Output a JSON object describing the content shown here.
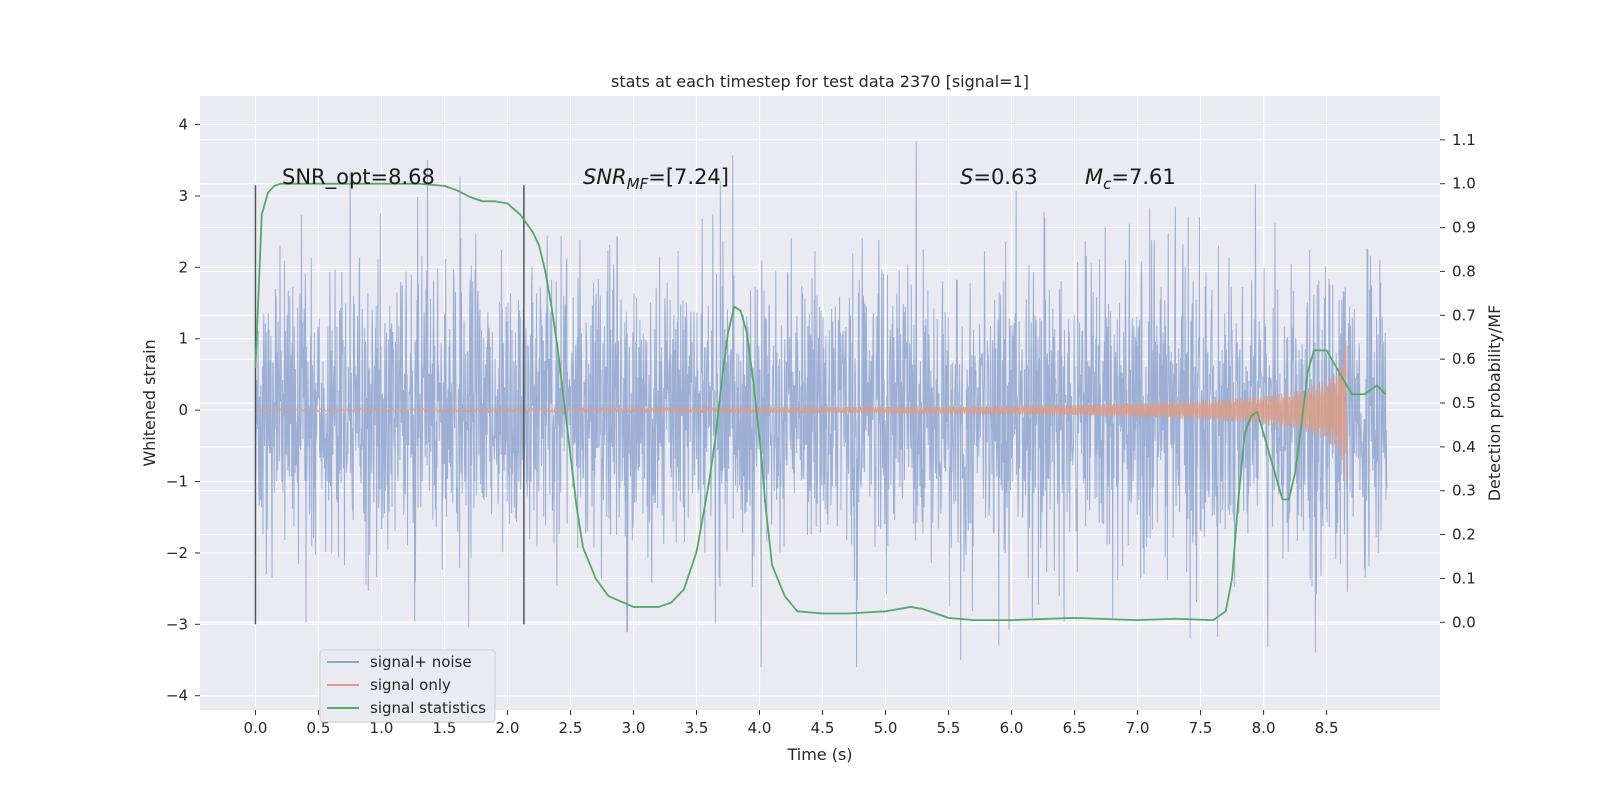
{
  "chart_data": {
    "type": "line",
    "title": "stats at each timestep for test data 2370 [signal=1]",
    "xlabel": "Time (s)",
    "ylabel_left": "Whitened strain",
    "ylabel_right": "Detection probability/MF",
    "xlim": [
      -0.44,
      9.4
    ],
    "ylim_left": [
      -4.2,
      4.4
    ],
    "ylim_right": [
      -0.2,
      1.2
    ],
    "x_ticks": [
      "0.0",
      "0.5",
      "1.0",
      "1.5",
      "2.0",
      "2.5",
      "3.0",
      "3.5",
      "4.0",
      "4.5",
      "5.0",
      "5.5",
      "6.0",
      "6.5",
      "7.0",
      "7.5",
      "8.0",
      "8.5"
    ],
    "y_ticks_left": [
      "4",
      "3",
      "2",
      "1",
      "0",
      "−1",
      "−2",
      "−3",
      "−4"
    ],
    "y_ticks_right": [
      "1.1",
      "1.0",
      "0.9",
      "0.8",
      "0.7",
      "0.6",
      "0.5",
      "0.4",
      "0.3",
      "0.2",
      "0.1",
      "0.0"
    ],
    "grid": true,
    "legend_position": "lower-left",
    "annotations": {
      "snr_opt": "SNR_opt=8.68",
      "snr_mf_main": "SNR",
      "snr_mf_sub": "MF",
      "snr_mf_value": "=[7.24]",
      "s_main": "S",
      "s_value": "=0.63",
      "mc_main": "M",
      "mc_sub": "c",
      "mc_value": "=7.61"
    },
    "markers": {
      "vertical_lines_x": [
        0.0,
        2.13
      ],
      "vertical_lines_yrange": [
        -3.0,
        3.15
      ]
    },
    "series": [
      {
        "name": "signal+ noise",
        "color": "#8fa4cf",
        "x_range": [
          0.0,
          8.98
        ],
        "approx_envelope": [
          -3.6,
          4.0
        ],
        "note_shape": "dense noise"
      },
      {
        "name": "signal only",
        "color": "#dd9c86",
        "x": [
          0.0,
          1.0,
          2.0,
          3.0,
          4.0,
          5.0,
          6.0,
          7.0,
          7.5,
          8.0,
          8.3,
          8.5,
          8.6,
          8.66,
          8.67
        ],
        "amplitude": [
          0.015,
          0.018,
          0.022,
          0.027,
          0.035,
          0.045,
          0.06,
          0.1,
          0.13,
          0.2,
          0.28,
          0.42,
          0.6,
          1.1,
          0.0
        ]
      },
      {
        "name": "signal statistics",
        "color": "#55a868",
        "x": [
          0.0,
          0.05,
          0.1,
          0.15,
          0.2,
          0.3,
          0.4,
          0.5,
          0.7,
          1.0,
          1.3,
          1.5,
          1.6,
          1.7,
          1.8,
          1.9,
          2.0,
          2.1,
          2.2,
          2.25,
          2.3,
          2.35,
          2.4,
          2.45,
          2.5,
          2.55,
          2.6,
          2.7,
          2.8,
          3.0,
          3.2,
          3.3,
          3.4,
          3.5,
          3.6,
          3.65,
          3.7,
          3.75,
          3.8,
          3.85,
          3.9,
          3.95,
          4.0,
          4.05,
          4.1,
          4.2,
          4.3,
          4.5,
          4.7,
          5.0,
          5.2,
          5.3,
          5.5,
          5.7,
          6.0,
          6.5,
          7.0,
          7.3,
          7.6,
          7.7,
          7.75,
          7.8,
          7.85,
          7.9,
          7.95,
          8.0,
          8.1,
          8.15,
          8.2,
          8.25,
          8.3,
          8.35,
          8.4,
          8.5,
          8.6,
          8.7,
          8.8,
          8.9,
          8.97
        ],
        "y": [
          0.58,
          0.93,
          0.98,
          0.995,
          1.0,
          1.0,
          1.0,
          1.0,
          1.0,
          1.0,
          1.0,
          0.995,
          0.985,
          0.97,
          0.96,
          0.96,
          0.955,
          0.93,
          0.89,
          0.86,
          0.8,
          0.72,
          0.62,
          0.5,
          0.38,
          0.26,
          0.17,
          0.1,
          0.06,
          0.035,
          0.035,
          0.045,
          0.075,
          0.16,
          0.32,
          0.42,
          0.55,
          0.66,
          0.72,
          0.71,
          0.66,
          0.55,
          0.42,
          0.26,
          0.13,
          0.06,
          0.025,
          0.02,
          0.02,
          0.025,
          0.035,
          0.03,
          0.01,
          0.005,
          0.005,
          0.01,
          0.005,
          0.008,
          0.005,
          0.025,
          0.1,
          0.28,
          0.43,
          0.47,
          0.48,
          0.43,
          0.33,
          0.28,
          0.28,
          0.34,
          0.45,
          0.57,
          0.62,
          0.62,
          0.57,
          0.52,
          0.52,
          0.54,
          0.52
        ]
      }
    ]
  }
}
